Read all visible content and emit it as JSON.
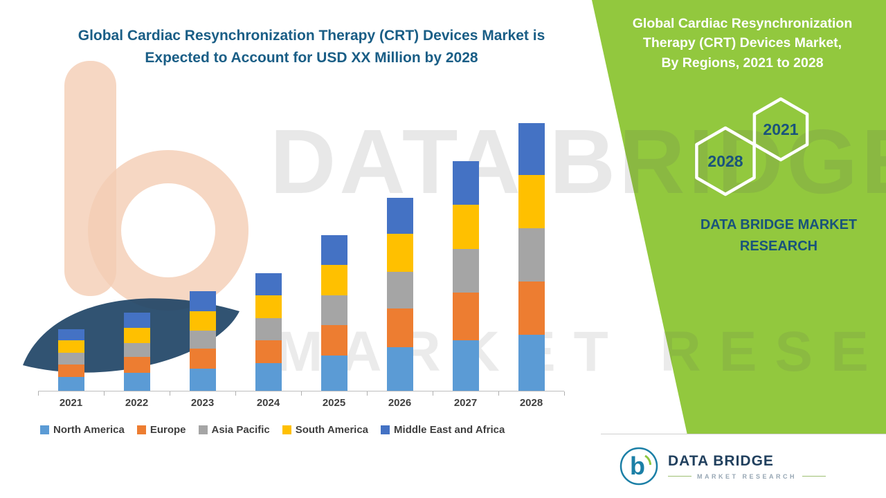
{
  "left_title": {
    "line1": "Global Cardiac Resynchronization Therapy (CRT) Devices Market is",
    "line2": "Expected to Account for USD XX Million by 2028"
  },
  "right_panel": {
    "title_line1": "Global Cardiac Resynchronization",
    "title_line2": "Therapy (CRT) Devices Market,",
    "title_line3": "By Regions, 2021 to 2028",
    "hex_back_year": "2028",
    "hex_front_year": "2021",
    "brand_line1": "DATA BRIDGE MARKET",
    "brand_line2": "RESEARCH",
    "panel_color": "#92C83E"
  },
  "watermark": {
    "line1": "DATA BRIDGE",
    "line2": "MARKET RESEARCH"
  },
  "footer": {
    "brand": "DATA BRIDGE",
    "sub": "MARKET RESEARCH"
  },
  "chart_data": {
    "type": "bar",
    "stacked": true,
    "title": "Global Cardiac Resynchronization Therapy (CRT) Devices Market is Expected to Account for USD XX Million by 2028",
    "categories": [
      "2021",
      "2022",
      "2023",
      "2024",
      "2025",
      "2026",
      "2027",
      "2028"
    ],
    "series": [
      {
        "name": "North America",
        "color": "#5B9BD5",
        "values": [
          5,
          6.5,
          8,
          10,
          12.5,
          15.5,
          18,
          20
        ]
      },
      {
        "name": "Europe",
        "color": "#ED7D31",
        "values": [
          4.5,
          5.5,
          7,
          8,
          11,
          14,
          17,
          19
        ]
      },
      {
        "name": "Asia Pacific",
        "color": "#A5A5A5",
        "values": [
          4,
          5,
          6.5,
          8,
          10.5,
          13,
          15.5,
          19
        ]
      },
      {
        "name": "South America",
        "color": "#FFC000",
        "values": [
          4.5,
          5.5,
          7,
          8,
          11,
          13.5,
          16,
          19
        ]
      },
      {
        "name": "Middle East and Africa",
        "color": "#4472C4",
        "values": [
          4,
          5.5,
          7,
          8,
          10.5,
          13,
          15.5,
          18.5
        ]
      }
    ],
    "ylim": [
      0,
      100
    ],
    "value_axis_visible": false,
    "grid": false,
    "legend_position": "bottom",
    "note": "No numeric value axis is shown in the figure; values are relative estimates read from bar heights (title cites USD XX Million)."
  }
}
